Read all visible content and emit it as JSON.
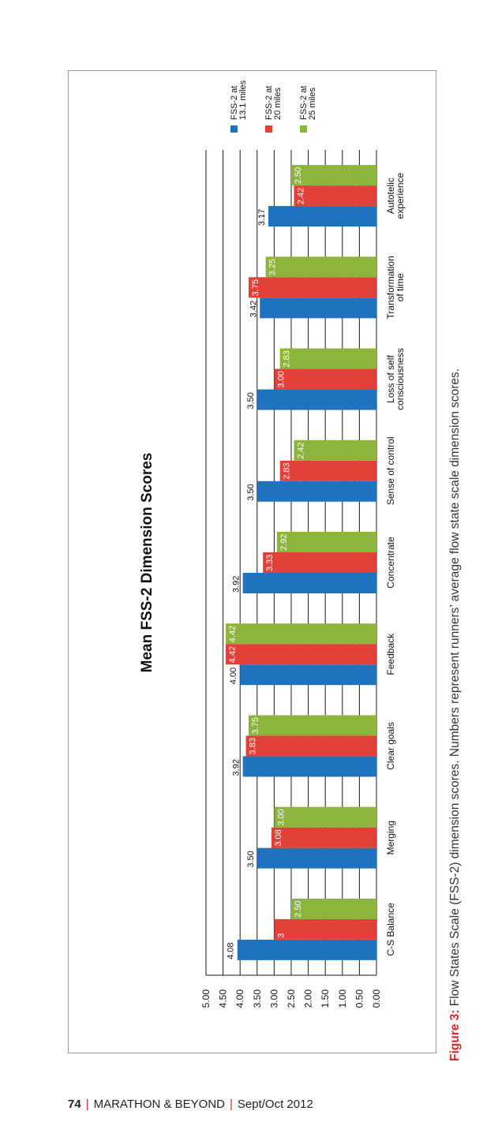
{
  "chart_data": {
    "type": "bar",
    "orientation": "vertical (page rotated 90°)",
    "title": "Mean FSS-2 Dimension Scores",
    "categories": [
      "C-S Balance",
      "Merging",
      "Clear goals",
      "Feedback",
      "Concentrate",
      "Sense of control",
      "Loss of self consciousness",
      "Transformation of time",
      "Autotelic experience"
    ],
    "categories_lines": [
      [
        "C-S Balance"
      ],
      [
        "Merging"
      ],
      [
        "Clear goals"
      ],
      [
        "Feedback"
      ],
      [
        "Concentrate"
      ],
      [
        "Sense of control"
      ],
      [
        "Loss of self",
        "consciousness"
      ],
      [
        "Transformation",
        "of time"
      ],
      [
        "Autotelic",
        "experience"
      ]
    ],
    "series": [
      {
        "name": "FSS-2 at 13.1 miles",
        "name_lines": [
          "FSS-2 at",
          "13.1 miles"
        ],
        "color": "#1f73be",
        "values": [
          4.08,
          3.5,
          3.92,
          4.0,
          3.92,
          3.5,
          3.5,
          3.42,
          3.17
        ],
        "labels": [
          "4.08",
          "3.50",
          "3.92",
          "4.00",
          "3.92",
          "3.50",
          "3.50",
          "3.42",
          "3.17"
        ],
        "label_position": "outside"
      },
      {
        "name": "FSS-2 at 20 miles",
        "name_lines": [
          "FSS-2 at",
          "20 miles"
        ],
        "color": "#e2413a",
        "values": [
          3,
          3.08,
          3.83,
          4.42,
          3.33,
          2.83,
          3.0,
          3.75,
          2.42
        ],
        "labels": [
          "3",
          "3.08",
          "3.83",
          "4.42",
          "3.33",
          "2.83",
          "3.00",
          "3.75",
          "2.42"
        ],
        "label_position": "inside"
      },
      {
        "name": "FSS-2 at 25 miles",
        "name_lines": [
          "FSS-2 at",
          "25 miles"
        ],
        "color": "#8db43b",
        "values": [
          2.5,
          3.0,
          3.75,
          4.42,
          2.92,
          2.42,
          2.83,
          3.25,
          2.5
        ],
        "labels": [
          "2.50",
          "3.00",
          "3.75",
          "4.42",
          "2.92",
          "2.42",
          "2.83",
          "3.25",
          "2.50"
        ],
        "label_position": "inside"
      }
    ],
    "ylim": [
      0,
      5
    ],
    "yticks": [
      "0.00",
      "0.50",
      "1.00",
      "1.50",
      "2.00",
      "2.50",
      "3.00",
      "3.50",
      "4.00",
      "4.50",
      "5.00"
    ],
    "grid": true,
    "legend_position": "right"
  },
  "caption": {
    "label": "Figure 3:",
    "text": " Flow States Scale (FSS-2) dimension scores. Numbers represent runners’ average flow state scale dimension scores."
  },
  "footer": {
    "page": "74",
    "publication": "MARATHON & BEYOND",
    "issue": "Sept/Oct 2012"
  }
}
